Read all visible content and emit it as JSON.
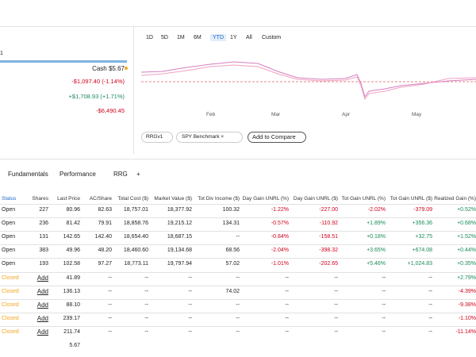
{
  "summary": {
    "name": "1",
    "cash": "Cash $5.67",
    "rows": [
      "-$1,097.40 (-1.14%)",
      "+$1,708.93 (+1.71%)",
      "-$6,490.45"
    ]
  },
  "ranges": [
    "1D",
    "5D",
    "1M",
    "6M",
    "YTD",
    "1Y",
    "All",
    "Custom"
  ],
  "chart": {
    "months": [
      "Feb",
      "Mar",
      "Apr",
      "May"
    ],
    "legend": [
      "RRGv1",
      "SPY Benchmark ×"
    ],
    "compare": "Add to Compare"
  },
  "tabs": [
    "Fundamentals",
    "Performance",
    "RRG",
    "+"
  ],
  "table": {
    "headers": [
      "Status",
      "Shares",
      "Last Price",
      "AC/Share",
      "Total Cost ($)",
      "Market Value ($)",
      "Tot Div Income ($)",
      "Day Gain UNRL (%)",
      "Day Gain UNRL ($)",
      "Tot Gain UNRL (%)",
      "Tot Gain UNRL ($)",
      "Realized Gain (%)"
    ],
    "rows": [
      [
        "Open",
        "227",
        "80.96",
        "82.63",
        "18,757.01",
        "18,377.92",
        "100.32",
        "-1.22%",
        "-227.00",
        "-2.02%",
        "-379.09",
        "+0.52%"
      ],
      [
        "Open",
        "236",
        "81.42",
        "79.91",
        "18,858.76",
        "19,215.12",
        "134.31",
        "-0.57%",
        "-110.92",
        "+1.89%",
        "+356.36",
        "+0.68%"
      ],
      [
        "Open",
        "131",
        "142.65",
        "142.40",
        "18,654.40",
        "18,687.15",
        "--",
        "-0.84%",
        "-158.51",
        "+0.18%",
        "+32.75",
        "+1.52%"
      ],
      [
        "Open",
        "383",
        "49.96",
        "48.20",
        "18,460.60",
        "19,134.68",
        "68.56",
        "-2.04%",
        "-398.32",
        "+3.65%",
        "+674.08",
        "+0.44%"
      ],
      [
        "Open",
        "193",
        "102.58",
        "97.27",
        "18,773.11",
        "19,797.94",
        "57.02",
        "-1.01%",
        "-202.65",
        "+5.46%",
        "+1,024.83",
        "+0.35%"
      ],
      [
        "Closed",
        "Add",
        "41.89",
        "--",
        "--",
        "--",
        "--",
        "--",
        "--",
        "--",
        "--",
        "+2.79%"
      ],
      [
        "Closed",
        "Add",
        "136.13",
        "--",
        "--",
        "--",
        "74.02",
        "--",
        "--",
        "--",
        "--",
        "-4.39%"
      ],
      [
        "Closed",
        "Add",
        "88.10",
        "--",
        "--",
        "--",
        "--",
        "--",
        "--",
        "--",
        "--",
        "-9.38%"
      ],
      [
        "Closed",
        "Add",
        "239.17",
        "--",
        "--",
        "--",
        "--",
        "--",
        "--",
        "--",
        "--",
        "-1.10%"
      ],
      [
        "Closed",
        "Add",
        "211.74",
        "--",
        "--",
        "--",
        "--",
        "--",
        "--",
        "--",
        "--",
        "-11.14%"
      ]
    ],
    "footer": "5.67"
  }
}
